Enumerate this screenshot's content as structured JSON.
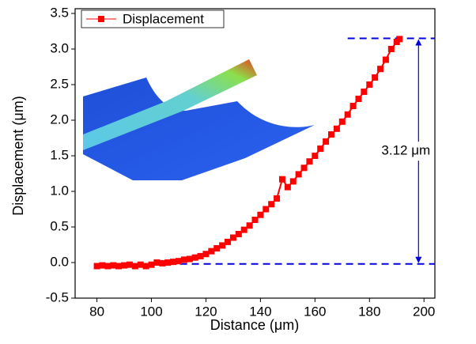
{
  "chart_data": {
    "type": "line",
    "x_label": "Distance (μm)",
    "y_label": "Displacement (μm)",
    "xlim": [
      72,
      204
    ],
    "ylim": [
      -0.5,
      3.5
    ],
    "xticks": [
      80,
      100,
      120,
      140,
      160,
      180,
      200
    ],
    "yticks": [
      {
        "value": -0.5,
        "label": "-0.5"
      },
      {
        "value": 0,
        "label": "0.0"
      },
      {
        "value": 0.5,
        "label": "0.5"
      },
      {
        "value": 1,
        "label": "1.0"
      },
      {
        "value": 1.5,
        "label": "1.5"
      },
      {
        "value": 2,
        "label": "2.0"
      },
      {
        "value": 2.5,
        "label": "2.5"
      },
      {
        "value": 3,
        "label": "3.0"
      },
      {
        "value": 3.5,
        "label": "3.5"
      }
    ],
    "legend": "top-left",
    "x": [
      80,
      82,
      84,
      86,
      88,
      90,
      92,
      94,
      96,
      98,
      100,
      102,
      104,
      106,
      108,
      110,
      112,
      114,
      116,
      118,
      120,
      122,
      124,
      126,
      128,
      130,
      132,
      134,
      136,
      138,
      140,
      142,
      144,
      146,
      148,
      150,
      152,
      154,
      156,
      158,
      160,
      162,
      164,
      166,
      168,
      170,
      172,
      174,
      176,
      178,
      180,
      182,
      184,
      186,
      188,
      190,
      191
    ],
    "series": [
      {
        "name": "Displacement",
        "color": "#ff0000",
        "values": [
          -0.05,
          -0.04,
          -0.05,
          -0.04,
          -0.05,
          -0.04,
          -0.03,
          -0.05,
          -0.03,
          -0.05,
          -0.03,
          0.0,
          -0.01,
          0.0,
          0.01,
          0.02,
          0.04,
          0.05,
          0.07,
          0.09,
          0.12,
          0.16,
          0.2,
          0.24,
          0.29,
          0.35,
          0.4,
          0.46,
          0.52,
          0.6,
          0.67,
          0.75,
          0.82,
          0.9,
          1.17,
          1.06,
          1.14,
          1.24,
          1.33,
          1.42,
          1.5,
          1.6,
          1.7,
          1.8,
          1.88,
          1.98,
          2.08,
          2.2,
          2.3,
          2.4,
          2.5,
          2.6,
          2.72,
          2.85,
          3.0,
          3.1,
          3.14
        ]
      }
    ],
    "reference_lines": [
      {
        "y": -0.02,
        "x0": 80,
        "x1": 204
      },
      {
        "y": 3.15,
        "x0": 172,
        "x1": 204
      }
    ],
    "reference_color": "#0000dd",
    "annotation": {
      "text": "3.12 μm",
      "x": 198
    }
  }
}
